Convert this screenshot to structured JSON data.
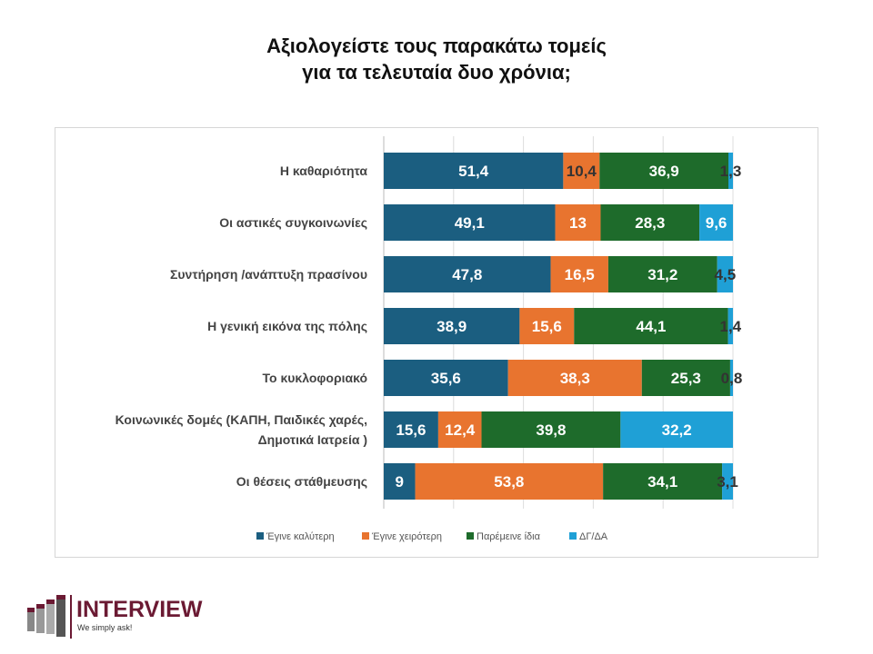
{
  "chart_data": {
    "type": "bar",
    "orientation": "horizontal",
    "stacked": true,
    "title": "Αξιολογείστε τους παρακάτω τομείς για τα τελευταία δυο χρόνια;",
    "title_lines": [
      "Αξιολογείστε τους παρακάτω τομείς",
      "για τα τελευταία δυο χρόνια;"
    ],
    "categories": [
      [
        "Η καθαριότητα"
      ],
      [
        "Οι αστικές συγκοινωνίες"
      ],
      [
        "Συντήρηση /ανάπτυξη πρασίνου"
      ],
      [
        "Η γενική εικόνα της πόλης"
      ],
      [
        "Το κυκλοφοριακό"
      ],
      [
        "Κοινωνικές δομές (ΚΑΠΗ, Παιδικές χαρές,",
        "Δημοτικά Ιατρεία )"
      ],
      [
        "Οι θέσεις στάθμευσης"
      ]
    ],
    "series": [
      {
        "name": "Έγινε καλύτερη",
        "color": "#1b5e80",
        "values": [
          51.4,
          49.1,
          47.8,
          38.9,
          35.6,
          15.6,
          9
        ],
        "labels": [
          "51,4",
          "49,1",
          "47,8",
          "38,9",
          "35,6",
          "15,6",
          "9"
        ]
      },
      {
        "name": "Έγινε χειρότερη",
        "color": "#e8742f",
        "values": [
          10.4,
          13,
          16.5,
          15.6,
          38.3,
          12.4,
          53.8
        ],
        "labels": [
          "10,4",
          "13",
          "16,5",
          "15,6",
          "38,3",
          "12,4",
          "53,8"
        ]
      },
      {
        "name": "Παρέμεινε ίδια",
        "color": "#1e6b2b",
        "values": [
          36.9,
          28.3,
          31.2,
          44.1,
          25.3,
          39.8,
          34.1
        ],
        "labels": [
          "36,9",
          "28,3",
          "31,2",
          "44,1",
          "25,3",
          "39,8",
          "34,1"
        ]
      },
      {
        "name": "ΔΓ/ΔΑ",
        "color": "#1fa0d6",
        "values": [
          1.3,
          9.6,
          4.5,
          1.4,
          0.8,
          32.2,
          3.1
        ],
        "labels": [
          "1,3",
          "9,6",
          "4,5",
          "1,4",
          "0,8",
          "32,2",
          "3,1"
        ]
      }
    ],
    "xlim": [
      0,
      100
    ],
    "grid": true,
    "legend": "bottom"
  },
  "logo": {
    "name": "INTERVIEW",
    "tagline": "We simply ask!"
  }
}
